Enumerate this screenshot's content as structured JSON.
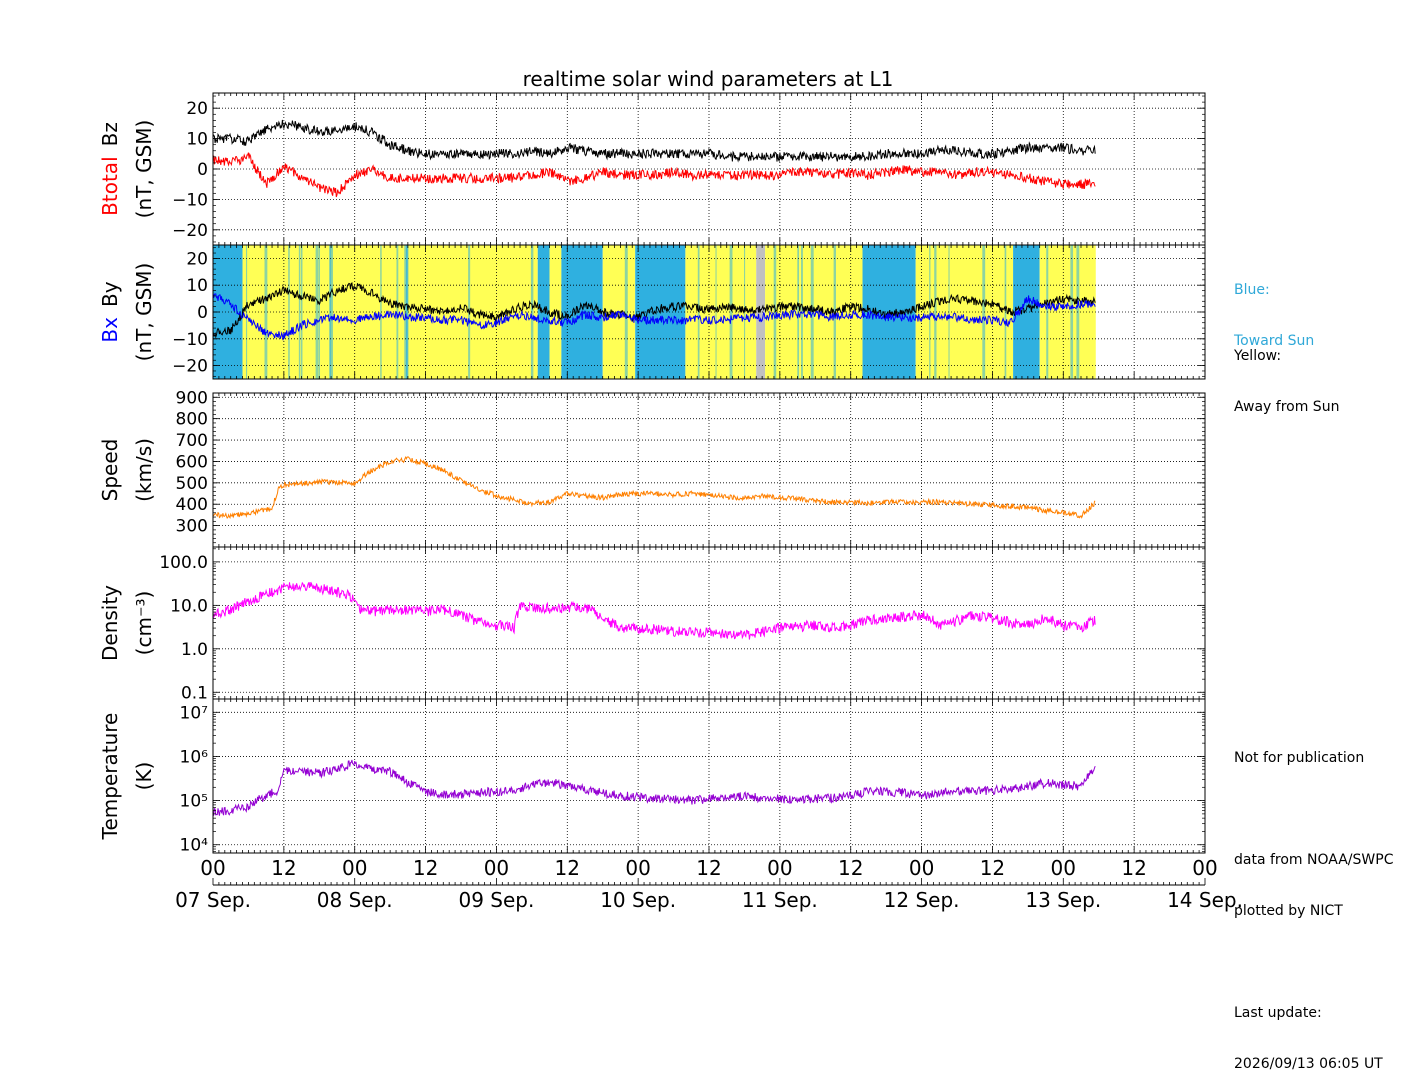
{
  "figure": {
    "title": "realtime solar wind parameters at L1",
    "notes": {
      "blue_label": "Blue:",
      "blue_desc": "Toward Sun",
      "yellow_label": "Yellow:",
      "yellow_desc": "Away from Sun",
      "not_for_publication": "Not for publication",
      "data_from": "data from NOAA/SWPC",
      "plotted_by": "plotted by NICT",
      "last_update_label": "Last update:",
      "last_update_value": "2026/09/13 06:05 UT"
    },
    "colors": {
      "btotal": "#000000",
      "bz": "#ff0000",
      "bx": "#0000ff",
      "by": "#000000",
      "speed": "#ff8000",
      "density": "#ff00ff",
      "temperature": "#9400d3",
      "toward_sun": "#2fb0e0",
      "away_from_sun": "#ffff55",
      "no_data": "#c0c0c0",
      "blue_note": "#2fa8d8"
    },
    "x_axis": {
      "range_hours": [
        0,
        168
      ],
      "tick_labels": [
        "00",
        "12",
        "00",
        "12",
        "00",
        "12",
        "00",
        "12",
        "00",
        "12",
        "00",
        "12",
        "00",
        "12",
        "00"
      ],
      "date_labels": [
        "07 Sep.",
        "08 Sep.",
        "09 Sep.",
        "10 Sep.",
        "11 Sep.",
        "12 Sep.",
        "13 Sep.",
        "14 Sep."
      ]
    }
  },
  "chart_data": [
    {
      "type": "line",
      "panel": "magnetic-field-bt-bz",
      "ylabel_parts": [
        "Bz",
        "Btotal",
        "(nT, GSM)"
      ],
      "ylim": [
        -25,
        25
      ],
      "yticks": [
        -20,
        -10,
        0,
        10,
        20
      ],
      "yticklabels": [
        "−20",
        "−10",
        "0",
        "10",
        "20"
      ],
      "x_unit": "hours since 07 Sep. 00 UT",
      "series": [
        {
          "name": "Btotal",
          "color": "#000000",
          "x": [
            0,
            3,
            6,
            9,
            12,
            15,
            18,
            21,
            24,
            27,
            30,
            33,
            36,
            39,
            42,
            45,
            48,
            51,
            54,
            57,
            60,
            63,
            66,
            69,
            72,
            75,
            78,
            81,
            84,
            87,
            90,
            93,
            96,
            99,
            102,
            105,
            108,
            111,
            114,
            117,
            120,
            123,
            126,
            129,
            132,
            135,
            138,
            141,
            144,
            147,
            149.5
          ],
          "y": [
            10,
            10,
            9,
            13,
            15,
            14,
            12,
            13,
            14,
            12,
            8,
            6,
            5,
            5,
            5,
            5,
            5,
            5,
            6,
            5,
            7,
            6,
            5,
            5,
            5,
            5,
            5,
            5,
            5,
            4,
            4,
            4,
            4,
            4,
            4,
            4,
            4,
            4,
            5,
            5,
            5,
            6,
            6,
            5,
            5,
            6,
            7,
            7,
            7,
            6,
            6
          ]
        },
        {
          "name": "Bz",
          "color": "#ff0000",
          "x": [
            0,
            3,
            6,
            9,
            12,
            15,
            18,
            21,
            24,
            27,
            30,
            33,
            36,
            39,
            42,
            45,
            48,
            51,
            54,
            57,
            60,
            63,
            66,
            69,
            72,
            75,
            78,
            81,
            84,
            87,
            90,
            93,
            96,
            99,
            102,
            105,
            108,
            111,
            114,
            117,
            120,
            123,
            126,
            129,
            132,
            135,
            138,
            141,
            144,
            147,
            149.5
          ],
          "y": [
            3,
            2,
            4,
            -5,
            1,
            -3,
            -6,
            -8,
            -2,
            0,
            -3,
            -3,
            -3,
            -3,
            -3,
            -3,
            -3,
            -3,
            -2,
            -1,
            -4,
            -3,
            -1,
            -2,
            -2,
            -2,
            -1,
            -2,
            -2,
            -2,
            -2,
            -2,
            -2,
            -1,
            -1,
            -2,
            -1,
            -2,
            -1,
            0,
            -1,
            -1,
            -2,
            -1,
            -1,
            -2,
            -3,
            -4,
            -5,
            -5,
            -5
          ]
        }
      ]
    },
    {
      "type": "line",
      "panel": "magnetic-field-bx-by",
      "ylabel_parts": [
        "By",
        "Bx",
        "(nT, GSM)"
      ],
      "ylim": [
        -25,
        25
      ],
      "yticks": [
        -20,
        -10,
        0,
        10,
        20
      ],
      "yticklabels": [
        "−20",
        "−10",
        "0",
        "10",
        "20"
      ],
      "sector_segments": [
        {
          "start": 0,
          "end": 5,
          "sector": "toward"
        },
        {
          "start": 5,
          "end": 55,
          "sector": "away"
        },
        {
          "start": 55,
          "end": 57,
          "sector": "toward"
        },
        {
          "start": 57,
          "end": 59,
          "sector": "away"
        },
        {
          "start": 59,
          "end": 66,
          "sector": "toward"
        },
        {
          "start": 66,
          "end": 71.5,
          "sector": "away"
        },
        {
          "start": 71.5,
          "end": 80,
          "sector": "toward"
        },
        {
          "start": 80,
          "end": 92,
          "sector": "away"
        },
        {
          "start": 92,
          "end": 93.5,
          "sector": "no_data"
        },
        {
          "start": 93.5,
          "end": 110,
          "sector": "away"
        },
        {
          "start": 110,
          "end": 119,
          "sector": "toward"
        },
        {
          "start": 119,
          "end": 135.5,
          "sector": "away"
        },
        {
          "start": 135.5,
          "end": 140,
          "sector": "toward"
        },
        {
          "start": 140,
          "end": 149.5,
          "sector": "away"
        }
      ],
      "series": [
        {
          "name": "By",
          "color": "#000000",
          "x": [
            0,
            3,
            6,
            9,
            12,
            15,
            18,
            21,
            24,
            27,
            30,
            33,
            36,
            39,
            42,
            45,
            48,
            51,
            54,
            57,
            60,
            63,
            66,
            69,
            72,
            75,
            78,
            81,
            84,
            87,
            90,
            93,
            96,
            99,
            102,
            105,
            108,
            111,
            114,
            117,
            120,
            123,
            126,
            129,
            132,
            135,
            138,
            141,
            144,
            147,
            149.5
          ],
          "y": [
            -8,
            -7,
            3,
            5,
            8,
            6,
            4,
            8,
            10,
            7,
            3,
            2,
            1,
            0,
            2,
            -1,
            -2,
            1,
            3,
            0,
            -2,
            3,
            0,
            -1,
            -2,
            1,
            2,
            2,
            1,
            2,
            1,
            1,
            2,
            2,
            1,
            0,
            2,
            1,
            -1,
            0,
            2,
            4,
            5,
            4,
            3,
            0,
            1,
            3,
            5,
            4,
            4
          ]
        },
        {
          "name": "Bx",
          "color": "#0000ff",
          "x": [
            0,
            3,
            6,
            9,
            12,
            15,
            18,
            21,
            24,
            27,
            30,
            33,
            36,
            39,
            42,
            45,
            48,
            51,
            54,
            57,
            60,
            63,
            66,
            69,
            72,
            75,
            78,
            81,
            84,
            87,
            90,
            93,
            96,
            99,
            102,
            105,
            108,
            111,
            114,
            117,
            120,
            123,
            126,
            129,
            132,
            135,
            138,
            141,
            144,
            147,
            149.5
          ],
          "y": [
            6,
            3,
            -3,
            -8,
            -9,
            -5,
            -3,
            -2,
            -3,
            -2,
            -1,
            -2,
            -2,
            -3,
            -3,
            -5,
            -4,
            -1,
            -2,
            -3,
            -4,
            -1,
            -2,
            -1,
            -3,
            -3,
            -3,
            -3,
            -3,
            -3,
            -2,
            -2,
            -1,
            -1,
            -1,
            -2,
            -1,
            -1,
            -2,
            -2,
            -2,
            -2,
            -2,
            -3,
            -3,
            -4,
            5,
            2,
            2,
            3,
            3
          ]
        }
      ]
    },
    {
      "type": "line",
      "panel": "speed",
      "ylabel_parts": [
        "Speed",
        "(km/s)"
      ],
      "ylim": [
        200,
        920
      ],
      "yticks": [
        300,
        400,
        500,
        600,
        700,
        800,
        900
      ],
      "yticklabels": [
        "300",
        "400",
        "500",
        "600",
        "700",
        "800",
        "900"
      ],
      "series": [
        {
          "name": "Speed",
          "color": "#ff8000",
          "x": [
            0,
            3,
            6,
            9,
            10,
            11,
            12,
            15,
            18,
            21,
            24,
            27,
            30,
            33,
            36,
            39,
            42,
            45,
            48,
            51,
            54,
            57,
            60,
            63,
            66,
            69,
            72,
            75,
            78,
            81,
            84,
            87,
            90,
            93,
            96,
            99,
            102,
            105,
            108,
            111,
            114,
            117,
            120,
            123,
            126,
            129,
            132,
            135,
            138,
            141,
            144,
            147,
            149.5
          ],
          "y": [
            350,
            345,
            355,
            375,
            380,
            470,
            490,
            495,
            505,
            500,
            500,
            560,
            600,
            610,
            590,
            560,
            510,
            470,
            440,
            420,
            405,
            410,
            450,
            440,
            430,
            445,
            450,
            450,
            445,
            450,
            445,
            435,
            430,
            440,
            430,
            425,
            415,
            410,
            410,
            405,
            410,
            410,
            410,
            410,
            405,
            400,
            395,
            390,
            385,
            370,
            360,
            345,
            410
          ]
        }
      ]
    },
    {
      "type": "line",
      "panel": "density",
      "ylabel_parts": [
        "Density",
        "(cm⁻³)"
      ],
      "log_scale": true,
      "ylim": [
        0.07,
        220
      ],
      "yticks": [
        0.1,
        1.0,
        10.0,
        100.0
      ],
      "yticklabels": [
        "0.1",
        "1.0",
        "10.0",
        "100.0"
      ],
      "series": [
        {
          "name": "Density",
          "color": "#ff00ff",
          "x": [
            0,
            3,
            6,
            9,
            12,
            15,
            18,
            21,
            24,
            25,
            27,
            30,
            33,
            36,
            39,
            42,
            45,
            48,
            51,
            52,
            55,
            58,
            61,
            64,
            66,
            69,
            72,
            75,
            78,
            81,
            84,
            87,
            90,
            93,
            96,
            99,
            102,
            105,
            108,
            111,
            114,
            117,
            120,
            123,
            126,
            129,
            132,
            135,
            138,
            141,
            144,
            147,
            149.5
          ],
          "y": [
            6,
            8,
            12,
            18,
            25,
            28,
            25,
            20,
            15,
            8,
            7,
            8,
            8,
            7,
            8,
            6,
            4,
            3.5,
            3,
            9,
            9,
            8,
            9,
            8,
            5,
            3,
            3,
            2.8,
            2.5,
            2.4,
            2.3,
            2.2,
            2.0,
            2.5,
            3,
            3.2,
            3.5,
            3,
            3.5,
            4.5,
            5,
            5.5,
            6,
            3.5,
            4.5,
            6,
            5,
            4,
            3.5,
            5,
            3.5,
            3,
            4.5
          ]
        }
      ]
    },
    {
      "type": "line",
      "panel": "temperature",
      "ylabel_parts": [
        "Temperature",
        "(K)"
      ],
      "log_scale": true,
      "ylim": [
        6500,
        20000000
      ],
      "yticks": [
        10000,
        100000,
        1000000,
        10000000
      ],
      "yticklabels": [
        "10⁴",
        "10⁵",
        "10⁶",
        "10⁷"
      ],
      "series": [
        {
          "name": "Temperature",
          "color": "#9400d3",
          "x": [
            0,
            3,
            6,
            9,
            11,
            12,
            15,
            18,
            21,
            24,
            27,
            30,
            33,
            36,
            39,
            42,
            45,
            48,
            51,
            54,
            57,
            60,
            63,
            66,
            69,
            72,
            75,
            78,
            81,
            84,
            87,
            90,
            93,
            96,
            99,
            102,
            105,
            108,
            111,
            114,
            117,
            120,
            123,
            126,
            129,
            132,
            135,
            138,
            141,
            144,
            147,
            149.5
          ],
          "y": [
            55000,
            60000,
            70000,
            130000,
            170000,
            450000,
            470000,
            420000,
            500000,
            700000,
            500000,
            450000,
            250000,
            160000,
            140000,
            140000,
            150000,
            160000,
            170000,
            230000,
            260000,
            220000,
            180000,
            150000,
            130000,
            120000,
            110000,
            105000,
            100000,
            110000,
            120000,
            125000,
            115000,
            110000,
            105000,
            110000,
            115000,
            130000,
            160000,
            160000,
            150000,
            130000,
            150000,
            170000,
            160000,
            170000,
            180000,
            210000,
            250000,
            230000,
            210000,
            550000
          ]
        }
      ]
    }
  ]
}
